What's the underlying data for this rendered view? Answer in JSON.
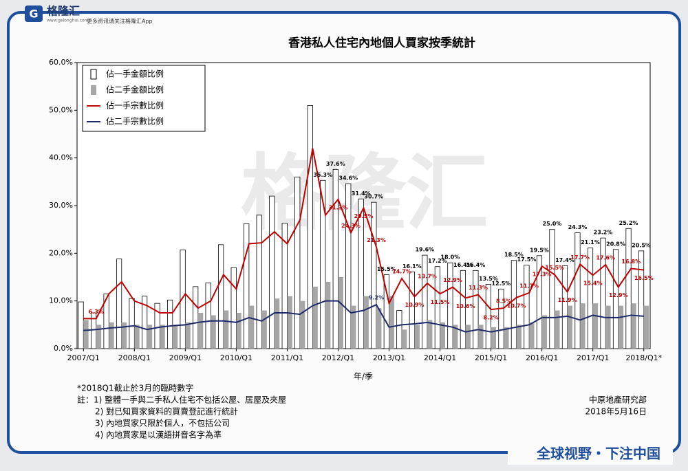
{
  "header": {
    "brand": "格隆汇",
    "site": "www.gelonghui.com",
    "tagline": "更多资讯请关注格隆汇App"
  },
  "chart_data": {
    "type": "bar_line",
    "title": "香港私人住宅內地個人買家按季統計",
    "x_label": "年/季",
    "categories": [
      "2007/Q1",
      null,
      null,
      null,
      "2008/Q1",
      null,
      null,
      null,
      "2009/Q1",
      null,
      null,
      null,
      "2010/Q1",
      null,
      null,
      null,
      "2011/Q1",
      null,
      null,
      null,
      "2012/Q1",
      null,
      null,
      null,
      "2013/Q1",
      null,
      null,
      null,
      "2014/Q1",
      null,
      null,
      null,
      "2015/Q1",
      null,
      null,
      null,
      "2016/Q1",
      null,
      null,
      null,
      "2017/Q1",
      null,
      null,
      null,
      "2018/Q1*"
    ],
    "ylim": [
      0,
      60
    ],
    "yticks": [
      {
        "value": 0,
        "label": "0.0%"
      },
      {
        "value": 10,
        "label": "10.0%"
      },
      {
        "value": 20,
        "label": "20.0%"
      },
      {
        "value": 30,
        "label": "30.0%"
      },
      {
        "value": 40,
        "label": "40.0%"
      },
      {
        "value": 50,
        "label": "50.0%"
      },
      {
        "value": 60,
        "label": "60.0%"
      }
    ],
    "legend": "top-left",
    "series": [
      {
        "name": "佔一手金額比例",
        "kind": "bar",
        "color": "#ffffff",
        "values": [
          9.8,
          7.5,
          11.5,
          18.8,
          10.5,
          11,
          9.5,
          10.2,
          20.7,
          13,
          13.8,
          21.8,
          17,
          26.2,
          28,
          32,
          26.3,
          36,
          51,
          35.3,
          37.6,
          34.6,
          31.4,
          30.7,
          15.5,
          8,
          16.1,
          19.6,
          17.2,
          18.0,
          16.4,
          16.4,
          13.5,
          12.5,
          18.5,
          17.5,
          19.5,
          25.0,
          17.4,
          24.3,
          21.1,
          23.2,
          20.8,
          25.2,
          20.5
        ],
        "value_labels": [
          null,
          null,
          null,
          null,
          null,
          null,
          null,
          null,
          null,
          null,
          null,
          null,
          null,
          null,
          null,
          null,
          null,
          null,
          null,
          "35.3%",
          "37.6%",
          "34.6%",
          "31.4%",
          "30.7%",
          "15.5%",
          null,
          "16.1%",
          "19.6%",
          "17.2%",
          "18.0%",
          "16.4%",
          "16.4%",
          "13.5%",
          "12.5%",
          "18.5%",
          "17.5%",
          "19.5%",
          "25.0%",
          "17.4%",
          "24.3%",
          "21.1%",
          "23.2%",
          "20.8%",
          "25.2%",
          "20.5%"
        ]
      },
      {
        "name": "佔二手金額比例",
        "kind": "bar",
        "color": "#a6a6a6",
        "values": [
          6,
          5,
          5.5,
          5.5,
          5,
          5,
          5,
          5,
          5.5,
          7.5,
          7,
          8,
          7.5,
          9,
          8,
          10.5,
          11,
          10,
          13,
          14,
          15,
          9,
          11,
          8.5,
          11,
          4,
          5,
          6,
          5.5,
          5,
          5,
          5,
          4.5,
          4.5,
          5,
          5.5,
          7,
          8,
          9,
          9.5,
          9.5,
          9,
          9,
          9.5,
          9
        ]
      },
      {
        "name": "佔一手宗數比例",
        "kind": "line",
        "color": "#c00000",
        "values": [
          6.3,
          6.3,
          11.5,
          14,
          10,
          9,
          7.5,
          7.5,
          11.5,
          8.5,
          10,
          15.5,
          12.5,
          22,
          22.2,
          24.5,
          22,
          27,
          42,
          28,
          31.3,
          24.3,
          29.5,
          21.3,
          9.5,
          14.7,
          10.9,
          13.7,
          11.5,
          12.9,
          10.6,
          11.3,
          8.2,
          8.5,
          10.7,
          11.7,
          17.3,
          15.5,
          11.9,
          17.7,
          15.4,
          17.6,
          12.9,
          16.8,
          16.5
        ],
        "value_labels": [
          null,
          "6.3%",
          null,
          null,
          null,
          null,
          null,
          null,
          null,
          null,
          null,
          null,
          null,
          null,
          null,
          null,
          null,
          null,
          null,
          null,
          "31.3%",
          "24.3%",
          "29.5%",
          "21.3%",
          null,
          "14.7%",
          "10.9%",
          "13.7%",
          "11.5%",
          "12.9%",
          "10.6%",
          "11.3%",
          "8.2%",
          "8.5%",
          "10.7%",
          "11.7%",
          "17.3%",
          "15.5%",
          "11.9%",
          "17.7%",
          "15.4%",
          "17.6%",
          "12.9%",
          "16.8%",
          "16.5%"
        ]
      },
      {
        "name": "佔二手宗數比例",
        "kind": "line",
        "color": "#1f2a6b",
        "values": [
          3.8,
          4,
          4.3,
          4.5,
          4.8,
          4,
          4.5,
          4.8,
          5,
          5.5,
          5.8,
          5.8,
          5.5,
          6.5,
          5.8,
          7.5,
          7.5,
          7.2,
          9,
          10,
          10,
          7.5,
          8,
          9.2,
          4.5,
          5,
          5.2,
          5.5,
          5,
          4.5,
          3.5,
          4,
          3.5,
          4,
          4.5,
          5,
          6.5,
          6.5,
          6.8,
          6,
          7,
          6.5,
          6.5,
          7,
          6.8
        ],
        "value_labels": [
          null,
          null,
          null,
          null,
          null,
          null,
          null,
          null,
          null,
          null,
          null,
          null,
          null,
          null,
          null,
          null,
          null,
          null,
          null,
          null,
          null,
          null,
          null,
          "9.2%",
          null,
          null,
          null,
          null,
          null,
          null,
          null,
          null,
          null,
          null,
          null,
          null,
          null,
          null,
          null,
          null,
          null,
          null,
          null,
          null,
          null
        ]
      }
    ]
  },
  "notes": {
    "asterisk": "*2018Q1截止於3月的臨時數字",
    "lines": [
      "註：1) 整體一手與二手私人住宅不包括公屋、居屋及夾屋",
      "2) 對已知買家資料的買賣登記進行統計",
      "3) 內地買家只限於個人，不包括公司",
      "4) 內地買家是以漢語拼音名字為準"
    ]
  },
  "source": {
    "org": "中原地產研究部",
    "date": "2018年5月16日"
  },
  "footer": "全球视野・下注中国"
}
